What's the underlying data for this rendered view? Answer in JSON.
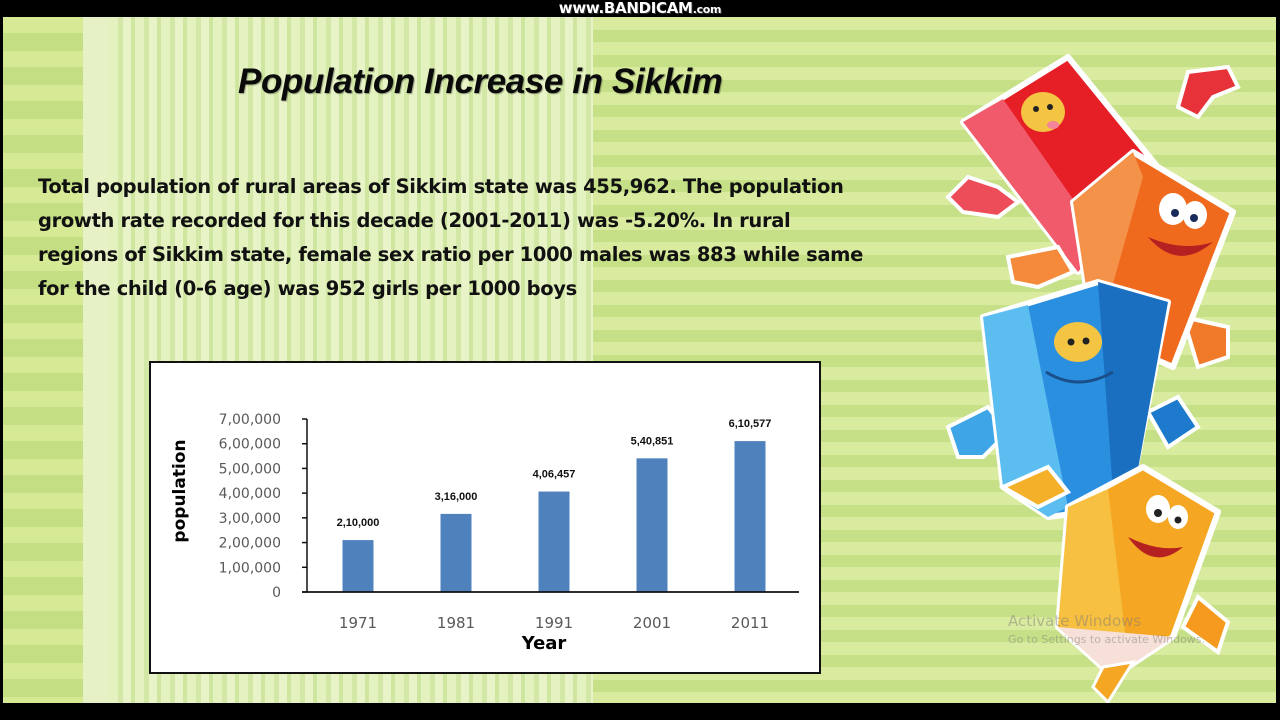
{
  "watermark": {
    "prefix": "www.",
    "brand": "BANDICAM",
    "suffix": ".com"
  },
  "slide": {
    "title": "Population Increase in Sikkim",
    "paragraph_lines": [
      "Total population of rural areas of Sikkim state was 455,962. The population",
      "growth rate recorded for this decade (2001-2011) was -5.20%. In rural",
      "regions of Sikkim state, female sex ratio per 1000 males was 883 while same",
      "for the child (0-6 age) was 952 girls per 1000 boys"
    ]
  },
  "os_overlay": {
    "activate_title": "Activate Windows",
    "activate_subtitle": "Go to Settings to activate Windows."
  },
  "colors": {
    "bar": "#4f81bd",
    "axis": "#111111",
    "tick_label": "#595959"
  },
  "chart_data": {
    "type": "bar",
    "title": "",
    "xlabel": "Year",
    "ylabel": "population",
    "categories": [
      "1971",
      "1981",
      "1991",
      "2001",
      "2011"
    ],
    "values": [
      210000,
      316000,
      406457,
      540851,
      610577
    ],
    "data_labels": [
      "2,10,000",
      "3,16,000",
      "4,06,457",
      "5,40,851",
      "6,10,577"
    ],
    "ylim": [
      0,
      700000
    ],
    "yticks": [
      0,
      100000,
      200000,
      300000,
      400000,
      500000,
      600000,
      700000
    ],
    "ytick_labels": [
      "0",
      "1,00,000",
      "2,00,000",
      "3,00,000",
      "4,00,000",
      "5,00,000",
      "6,00,000",
      "7,00,000"
    ],
    "grid": false,
    "legend": "none"
  }
}
